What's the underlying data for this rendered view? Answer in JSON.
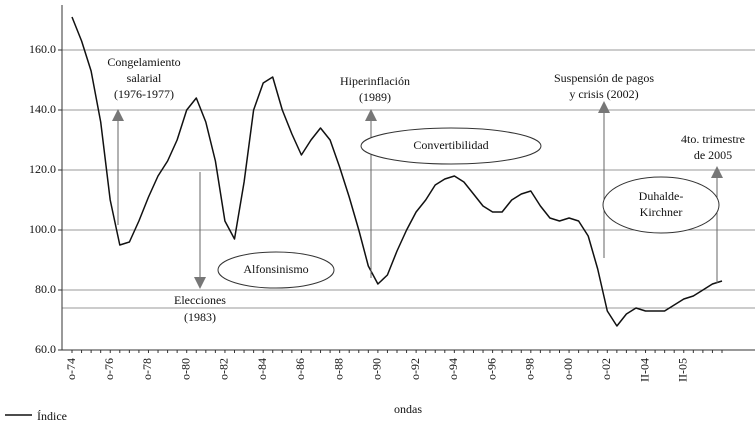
{
  "chart_data": {
    "type": "line",
    "x_label": "ondas",
    "categories": [
      "o-74",
      null,
      null,
      null,
      "o-76",
      null,
      null,
      null,
      "o-78",
      null,
      null,
      null,
      "o-80",
      null,
      null,
      null,
      "o-82",
      null,
      null,
      null,
      "o-84",
      null,
      null,
      null,
      "o-86",
      null,
      null,
      null,
      "o-88",
      null,
      null,
      null,
      "o-90",
      null,
      null,
      null,
      "o-92",
      null,
      null,
      null,
      "o-94",
      null,
      null,
      null,
      "o-96",
      null,
      null,
      null,
      "o-98",
      null,
      null,
      null,
      "o-00",
      null,
      null,
      null,
      "o-02",
      null,
      null,
      null,
      "II-04",
      null,
      null,
      null,
      "II-05",
      null,
      null,
      null,
      null
    ],
    "series": [
      {
        "name": "Índice",
        "color": "#111111",
        "values": [
          171,
          163,
          153,
          136,
          110,
          95,
          96,
          103,
          111,
          118,
          123,
          130,
          140,
          144,
          136,
          123,
          103,
          97,
          116,
          140,
          149,
          151,
          140,
          132,
          125,
          130,
          134,
          130,
          121,
          111,
          100,
          88,
          82,
          85,
          93,
          100,
          106,
          110,
          115,
          117,
          118,
          116,
          112,
          108,
          106,
          106,
          110,
          112,
          113,
          108,
          104,
          103,
          104,
          103,
          98,
          87,
          73,
          68,
          72,
          74,
          73,
          73,
          73,
          75,
          77,
          78,
          80,
          82,
          83
        ]
      }
    ],
    "ylim": [
      60,
      175
    ],
    "yticks": [
      {
        "value": 60,
        "label": "60.0"
      },
      {
        "value": 80,
        "label": "80.0"
      },
      {
        "value": 100,
        "label": "100.0"
      },
      {
        "value": 120,
        "label": "120.0"
      },
      {
        "value": 140,
        "label": "140.0"
      },
      {
        "value": 160,
        "label": "160.0"
      }
    ],
    "reference_line": 74,
    "grid": true,
    "annotations": [
      {
        "lines": [
          "Congelamiento",
          "salarial",
          "(1976-1977)"
        ]
      },
      {
        "lines": [
          "Elecciones",
          "(1983)"
        ]
      },
      {
        "lines": [
          "Hiperinflación",
          "(1989)"
        ]
      },
      {
        "lines": [
          "Suspensión de pagos",
          "y crisis (2002)"
        ]
      },
      {
        "lines": [
          "4to. trimestre",
          "de 2005"
        ]
      },
      {
        "lines": [
          "Alfonsinismo"
        ]
      },
      {
        "lines": [
          "Convertibilidad"
        ]
      },
      {
        "lines": [
          "Duhalde-",
          "Kirchner"
        ]
      }
    ]
  }
}
